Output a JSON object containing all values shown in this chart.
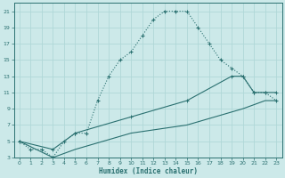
{
  "xlabel": "Humidex (Indice chaleur)",
  "bg_color": "#cce9e9",
  "line_color": "#2a7070",
  "grid_color": "#b0d8d8",
  "xlim": [
    -0.5,
    23.5
  ],
  "ylim": [
    3,
    22
  ],
  "xticks": [
    0,
    1,
    2,
    3,
    4,
    5,
    6,
    7,
    8,
    9,
    10,
    11,
    12,
    13,
    14,
    15,
    16,
    17,
    18,
    19,
    20,
    21,
    22,
    23
  ],
  "yticks": [
    3,
    5,
    7,
    9,
    11,
    13,
    15,
    17,
    19,
    21
  ],
  "curve1_x": [
    0,
    1,
    2,
    3,
    4,
    5,
    6,
    7,
    8,
    9,
    10,
    11,
    12,
    13,
    14,
    15,
    16,
    17,
    18,
    19,
    20,
    21,
    22,
    23
  ],
  "curve1_y": [
    5,
    4,
    4,
    3,
    5,
    6,
    6,
    10,
    13,
    15,
    16,
    18,
    20,
    21,
    21,
    21,
    19,
    17,
    15,
    14,
    13,
    11,
    11,
    10
  ],
  "curve2_x": [
    0,
    3,
    5,
    10,
    15,
    19,
    20,
    21,
    22,
    23
  ],
  "curve2_y": [
    5,
    4,
    6,
    8,
    10,
    13,
    13,
    11,
    11,
    11
  ],
  "curve3_x": [
    0,
    3,
    5,
    10,
    15,
    20,
    21,
    22,
    23
  ],
  "curve3_y": [
    5,
    3,
    4,
    6,
    7,
    9,
    9.5,
    10,
    10
  ]
}
